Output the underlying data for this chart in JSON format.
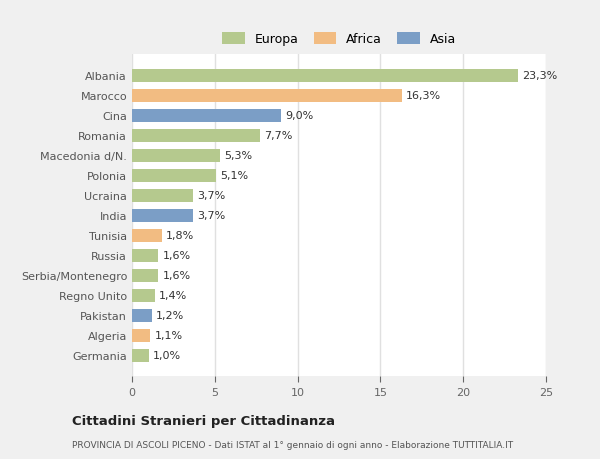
{
  "countries": [
    "Albania",
    "Marocco",
    "Cina",
    "Romania",
    "Macedonia d/N.",
    "Polonia",
    "Ucraina",
    "India",
    "Tunisia",
    "Russia",
    "Serbia/Montenegro",
    "Regno Unito",
    "Pakistan",
    "Algeria",
    "Germania"
  ],
  "values": [
    23.3,
    16.3,
    9.0,
    7.7,
    5.3,
    5.1,
    3.7,
    3.7,
    1.8,
    1.6,
    1.6,
    1.4,
    1.2,
    1.1,
    1.0
  ],
  "continents": [
    "Europa",
    "Africa",
    "Asia",
    "Europa",
    "Europa",
    "Europa",
    "Europa",
    "Asia",
    "Africa",
    "Europa",
    "Europa",
    "Europa",
    "Asia",
    "Africa",
    "Europa"
  ],
  "colors": {
    "Europa": "#b5c98e",
    "Africa": "#f2bc82",
    "Asia": "#7b9ec6"
  },
  "legend_order": [
    "Europa",
    "Africa",
    "Asia"
  ],
  "xlim": [
    0,
    25
  ],
  "xticks": [
    0,
    5,
    10,
    15,
    20,
    25
  ],
  "title": "Cittadini Stranieri per Cittadinanza",
  "subtitle": "PROVINCIA DI ASCOLI PICENO - Dati ISTAT al 1° gennaio di ogni anno - Elaborazione TUTTITALIA.IT",
  "fig_bg_color": "#f0f0f0",
  "plot_bg_color": "#ffffff",
  "grid_color": "#e0e0e0",
  "label_fontsize": 8.0,
  "value_fontsize": 8.0,
  "tick_fontsize": 8.0
}
